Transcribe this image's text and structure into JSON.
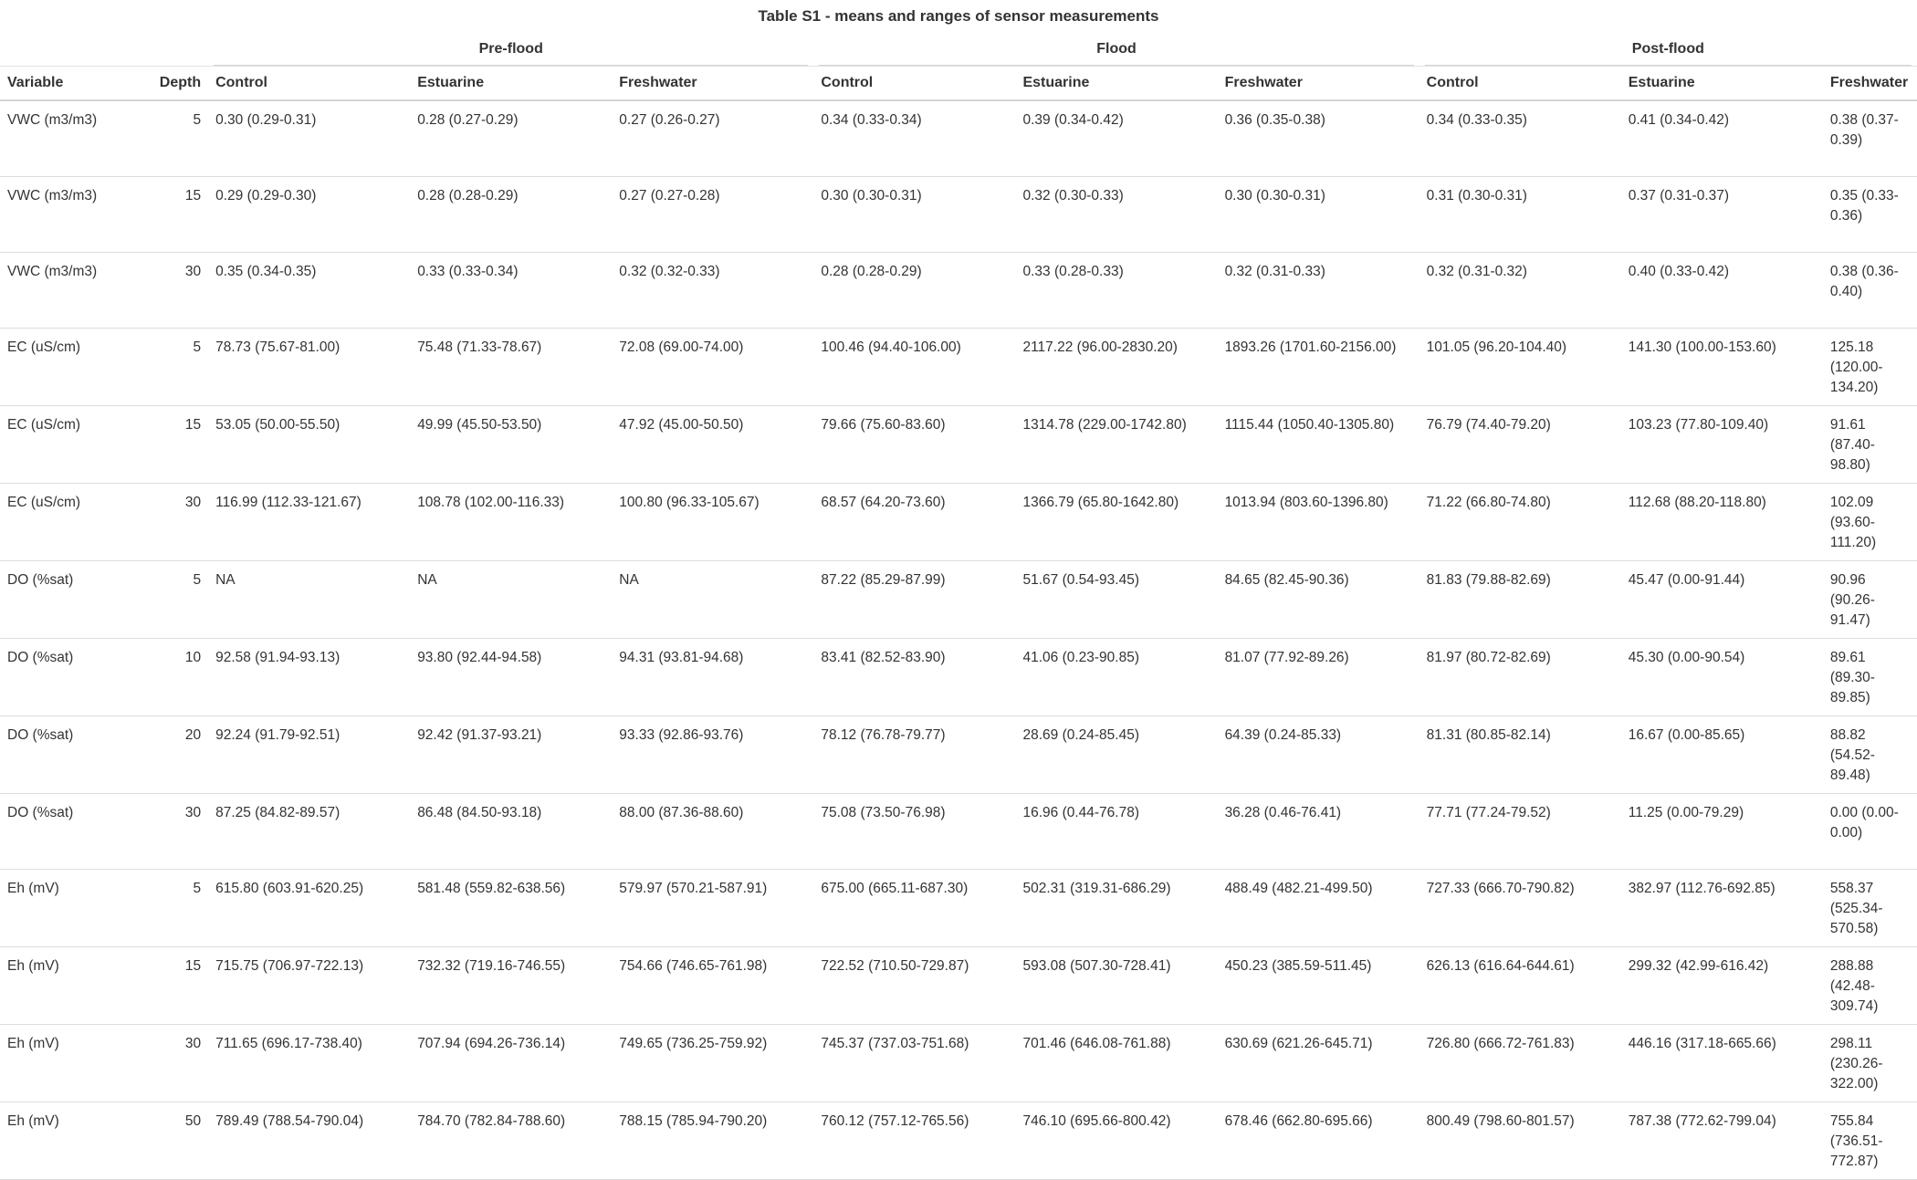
{
  "title": "Table S1 - means and ranges of sensor measurements",
  "spanners": [
    "Pre-flood",
    "Flood",
    "Post-flood"
  ],
  "columns": [
    "Variable",
    "Depth",
    "Control",
    "Estuarine",
    "Freshwater",
    "Control",
    "Estuarine",
    "Freshwater",
    "Control",
    "Estuarine",
    "Freshwater"
  ],
  "rows": [
    [
      "VWC (m3/m3)",
      "5",
      "0.30 (0.29-0.31)",
      "0.28 (0.27-0.29)",
      "0.27 (0.26-0.27)",
      "0.34 (0.33-0.34)",
      "0.39 (0.34-0.42)",
      "0.36 (0.35-0.38)",
      "0.34 (0.33-0.35)",
      "0.41 (0.34-0.42)",
      "0.38 (0.37-0.39)"
    ],
    [
      "VWC (m3/m3)",
      "15",
      "0.29 (0.29-0.30)",
      "0.28 (0.28-0.29)",
      "0.27 (0.27-0.28)",
      "0.30 (0.30-0.31)",
      "0.32 (0.30-0.33)",
      "0.30 (0.30-0.31)",
      "0.31 (0.30-0.31)",
      "0.37 (0.31-0.37)",
      "0.35 (0.33-0.36)"
    ],
    [
      "VWC (m3/m3)",
      "30",
      "0.35 (0.34-0.35)",
      "0.33 (0.33-0.34)",
      "0.32 (0.32-0.33)",
      "0.28 (0.28-0.29)",
      "0.33 (0.28-0.33)",
      "0.32 (0.31-0.33)",
      "0.32 (0.31-0.32)",
      "0.40 (0.33-0.42)",
      "0.38 (0.36-0.40)"
    ],
    [
      "EC (uS/cm)",
      "5",
      "78.73 (75.67-81.00)",
      "75.48 (71.33-78.67)",
      "72.08 (69.00-74.00)",
      "100.46 (94.40-106.00)",
      "2117.22 (96.00-2830.20)",
      "1893.26 (1701.60-2156.00)",
      "101.05 (96.20-104.40)",
      "141.30 (100.00-153.60)",
      "125.18 (120.00-134.20)"
    ],
    [
      "EC (uS/cm)",
      "15",
      "53.05 (50.00-55.50)",
      "49.99 (45.50-53.50)",
      "47.92 (45.00-50.50)",
      "79.66 (75.60-83.60)",
      "1314.78 (229.00-1742.80)",
      "1115.44 (1050.40-1305.80)",
      "76.79 (74.40-79.20)",
      "103.23 (77.80-109.40)",
      "91.61 (87.40-98.80)"
    ],
    [
      "EC (uS/cm)",
      "30",
      "116.99 (112.33-121.67)",
      "108.78 (102.00-116.33)",
      "100.80 (96.33-105.67)",
      "68.57 (64.20-73.60)",
      "1366.79 (65.80-1642.80)",
      "1013.94 (803.60-1396.80)",
      "71.22 (66.80-74.80)",
      "112.68 (88.20-118.80)",
      "102.09 (93.60-111.20)"
    ],
    [
      "DO (%sat)",
      "5",
      "NA",
      "NA",
      "NA",
      "87.22 (85.29-87.99)",
      "51.67 (0.54-93.45)",
      "84.65 (82.45-90.36)",
      "81.83 (79.88-82.69)",
      "45.47 (0.00-91.44)",
      "90.96 (90.26-91.47)"
    ],
    [
      "DO (%sat)",
      "10",
      "92.58 (91.94-93.13)",
      "93.80 (92.44-94.58)",
      "94.31 (93.81-94.68)",
      "83.41 (82.52-83.90)",
      "41.06 (0.23-90.85)",
      "81.07 (77.92-89.26)",
      "81.97 (80.72-82.69)",
      "45.30 (0.00-90.54)",
      "89.61 (89.30-89.85)"
    ],
    [
      "DO (%sat)",
      "20",
      "92.24 (91.79-92.51)",
      "92.42 (91.37-93.21)",
      "93.33 (92.86-93.76)",
      "78.12 (76.78-79.77)",
      "28.69 (0.24-85.45)",
      "64.39 (0.24-85.33)",
      "81.31 (80.85-82.14)",
      "16.67 (0.00-85.65)",
      "88.82 (54.52-89.48)"
    ],
    [
      "DO (%sat)",
      "30",
      "87.25 (84.82-89.57)",
      "86.48 (84.50-93.18)",
      "88.00 (87.36-88.60)",
      "75.08 (73.50-76.98)",
      "16.96 (0.44-76.78)",
      "36.28 (0.46-76.41)",
      "77.71 (77.24-79.52)",
      "11.25 (0.00-79.29)",
      "0.00 (0.00-0.00)"
    ],
    [
      "Eh (mV)",
      "5",
      "615.80 (603.91-620.25)",
      "581.48 (559.82-638.56)",
      "579.97 (570.21-587.91)",
      "675.00 (665.11-687.30)",
      "502.31 (319.31-686.29)",
      "488.49 (482.21-499.50)",
      "727.33 (666.70-790.82)",
      "382.97 (112.76-692.85)",
      "558.37 (525.34-570.58)"
    ],
    [
      "Eh (mV)",
      "15",
      "715.75 (706.97-722.13)",
      "732.32 (719.16-746.55)",
      "754.66 (746.65-761.98)",
      "722.52 (710.50-729.87)",
      "593.08 (507.30-728.41)",
      "450.23 (385.59-511.45)",
      "626.13 (616.64-644.61)",
      "299.32 (42.99-616.42)",
      "288.88 (42.48-309.74)"
    ],
    [
      "Eh (mV)",
      "30",
      "711.65 (696.17-738.40)",
      "707.94 (694.26-736.14)",
      "749.65 (736.25-759.92)",
      "745.37 (737.03-751.68)",
      "701.46 (646.08-761.88)",
      "630.69 (621.26-645.71)",
      "726.80 (666.72-761.83)",
      "446.16 (317.18-665.66)",
      "298.11 (230.26-322.00)"
    ],
    [
      "Eh (mV)",
      "50",
      "789.49 (788.54-790.04)",
      "784.70 (782.84-788.60)",
      "788.15 (785.94-790.20)",
      "760.12 (757.12-765.56)",
      "746.10 (695.66-800.42)",
      "678.46 (662.80-695.66)",
      "800.49 (798.60-801.57)",
      "787.38 (772.62-799.04)",
      "755.84 (736.51-772.87)"
    ]
  ]
}
